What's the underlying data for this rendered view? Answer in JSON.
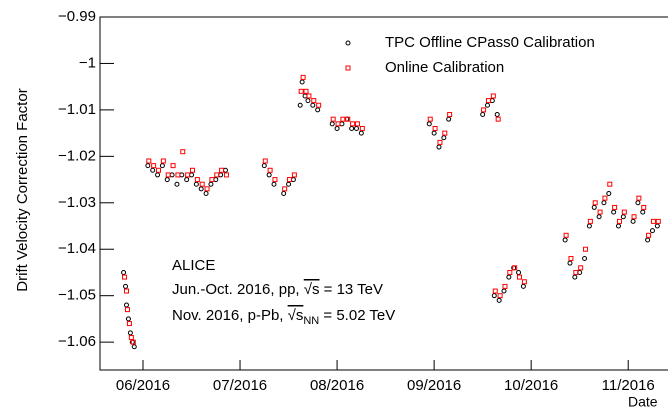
{
  "chart_data": {
    "type": "scatter",
    "xlabel": "Date",
    "ylabel": "Drift Velocity Correction Factor",
    "xlim": [
      5.557,
      11.41
    ],
    "ylim": [
      -1.066,
      -0.99
    ],
    "xticks": [
      {
        "value": 6,
        "label": "06/2016"
      },
      {
        "value": 7,
        "label": "07/2016"
      },
      {
        "value": 8,
        "label": "08/2016"
      },
      {
        "value": 9,
        "label": "09/2016"
      },
      {
        "value": 10,
        "label": "10/2016"
      },
      {
        "value": 11,
        "label": "11/2016"
      }
    ],
    "yticks": [
      {
        "value": -0.99,
        "label": "−0.99"
      },
      {
        "value": -1,
        "label": "−1"
      },
      {
        "value": -1.01,
        "label": "−1.01"
      },
      {
        "value": -1.02,
        "label": "−1.02"
      },
      {
        "value": -1.03,
        "label": "−1.03"
      },
      {
        "value": -1.04,
        "label": "−1.04"
      },
      {
        "value": -1.05,
        "label": "−1.05"
      },
      {
        "value": -1.06,
        "label": "−1.06"
      }
    ],
    "legend_position": "upper right",
    "annotations": [
      "ALICE",
      [
        "Jun.-Oct. 2016, pp, ",
        "√s",
        " = 13 TeV"
      ],
      [
        "Nov. 2016, p-Pb, ",
        "√s",
        "NN",
        " = 5.02 TeV"
      ]
    ],
    "series": [
      {
        "name": "TPC Offline CPass0 Calibration",
        "color": "#000000",
        "marker": "circle",
        "x": [
          5.8,
          5.82,
          5.83,
          5.85,
          5.87,
          5.89,
          5.91,
          6.05,
          6.1,
          6.15,
          6.2,
          6.25,
          6.3,
          6.35,
          6.4,
          6.45,
          6.5,
          6.55,
          6.6,
          6.65,
          6.7,
          6.75,
          6.8,
          6.85,
          7.25,
          7.3,
          7.35,
          7.45,
          7.5,
          7.55,
          7.62,
          7.64,
          7.67,
          7.7,
          7.75,
          7.8,
          7.95,
          8.0,
          8.05,
          8.1,
          8.15,
          8.2,
          8.25,
          8.95,
          9.0,
          9.05,
          9.1,
          9.15,
          9.5,
          9.55,
          9.6,
          9.65,
          9.62,
          9.67,
          9.72,
          9.77,
          9.82,
          9.87,
          9.92,
          10.35,
          10.4,
          10.45,
          10.5,
          10.55,
          10.6,
          10.65,
          10.7,
          10.75,
          10.8,
          10.85,
          10.9,
          10.95,
          11.05,
          11.1,
          11.15,
          11.2,
          11.25,
          11.3
        ],
        "values": [
          -1.045,
          -1.048,
          -1.052,
          -1.055,
          -1.058,
          -1.06,
          -1.061,
          -1.022,
          -1.023,
          -1.024,
          -1.022,
          -1.025,
          -1.024,
          -1.026,
          -1.024,
          -1.025,
          -1.024,
          -1.026,
          -1.027,
          -1.028,
          -1.026,
          -1.025,
          -1.024,
          -1.023,
          -1.022,
          -1.024,
          -1.026,
          -1.028,
          -1.026,
          -1.025,
          -1.009,
          -1.004,
          -1.007,
          -1.008,
          -1.009,
          -1.01,
          -1.013,
          -1.014,
          -1.013,
          -1.012,
          -1.014,
          -1.014,
          -1.015,
          -1.013,
          -1.015,
          -1.018,
          -1.016,
          -1.012,
          -1.011,
          -1.009,
          -1.008,
          -1.011,
          -1.05,
          -1.051,
          -1.049,
          -1.046,
          -1.044,
          -1.045,
          -1.048,
          -1.038,
          -1.043,
          -1.046,
          -1.045,
          -1.042,
          -1.035,
          -1.031,
          -1.033,
          -1.03,
          -1.028,
          -1.032,
          -1.035,
          -1.033,
          -1.034,
          -1.03,
          -1.032,
          -1.038,
          -1.036,
          -1.035
        ]
      },
      {
        "name": "Online Calibration",
        "color": "#ff0000",
        "marker": "square",
        "x": [
          5.81,
          5.83,
          5.84,
          5.86,
          5.88,
          5.9,
          6.06,
          6.11,
          6.16,
          6.21,
          6.26,
          6.31,
          6.36,
          6.41,
          6.46,
          6.51,
          6.56,
          6.61,
          6.66,
          6.71,
          6.76,
          6.81,
          6.86,
          7.26,
          7.31,
          7.36,
          7.46,
          7.51,
          7.56,
          7.63,
          7.65,
          7.68,
          7.71,
          7.76,
          7.81,
          7.96,
          8.01,
          8.06,
          8.11,
          8.16,
          8.21,
          8.26,
          8.96,
          9.01,
          9.06,
          9.11,
          9.16,
          9.51,
          9.56,
          9.61,
          9.66,
          9.63,
          9.68,
          9.73,
          9.78,
          9.83,
          9.88,
          9.93,
          10.36,
          10.41,
          10.46,
          10.51,
          10.56,
          10.61,
          10.66,
          10.71,
          10.76,
          10.81,
          10.86,
          10.91,
          10.96,
          11.06,
          11.11,
          11.16,
          11.21,
          11.26,
          11.31
        ],
        "values": [
          -1.046,
          -1.049,
          -1.053,
          -1.056,
          -1.059,
          -1.06,
          -1.021,
          -1.022,
          -1.023,
          -1.021,
          -1.024,
          -1.022,
          -1.024,
          -1.019,
          -1.024,
          -1.023,
          -1.025,
          -1.026,
          -1.027,
          -1.025,
          -1.024,
          -1.023,
          -1.024,
          -1.021,
          -1.023,
          -1.025,
          -1.027,
          -1.025,
          -1.024,
          -1.006,
          -1.003,
          -1.006,
          -1.007,
          -1.008,
          -1.009,
          -1.012,
          -1.013,
          -1.012,
          -1.012,
          -1.013,
          -1.013,
          -1.014,
          -1.012,
          -1.014,
          -1.017,
          -1.015,
          -1.011,
          -1.01,
          -1.008,
          -1.007,
          -1.012,
          -1.049,
          -1.05,
          -1.048,
          -1.045,
          -1.044,
          -1.046,
          -1.047,
          -1.037,
          -1.042,
          -1.045,
          -1.044,
          -1.04,
          -1.034,
          -1.03,
          -1.032,
          -1.029,
          -1.026,
          -1.031,
          -1.034,
          -1.032,
          -1.033,
          -1.029,
          -1.031,
          -1.037,
          -1.034,
          -1.034
        ]
      }
    ]
  }
}
